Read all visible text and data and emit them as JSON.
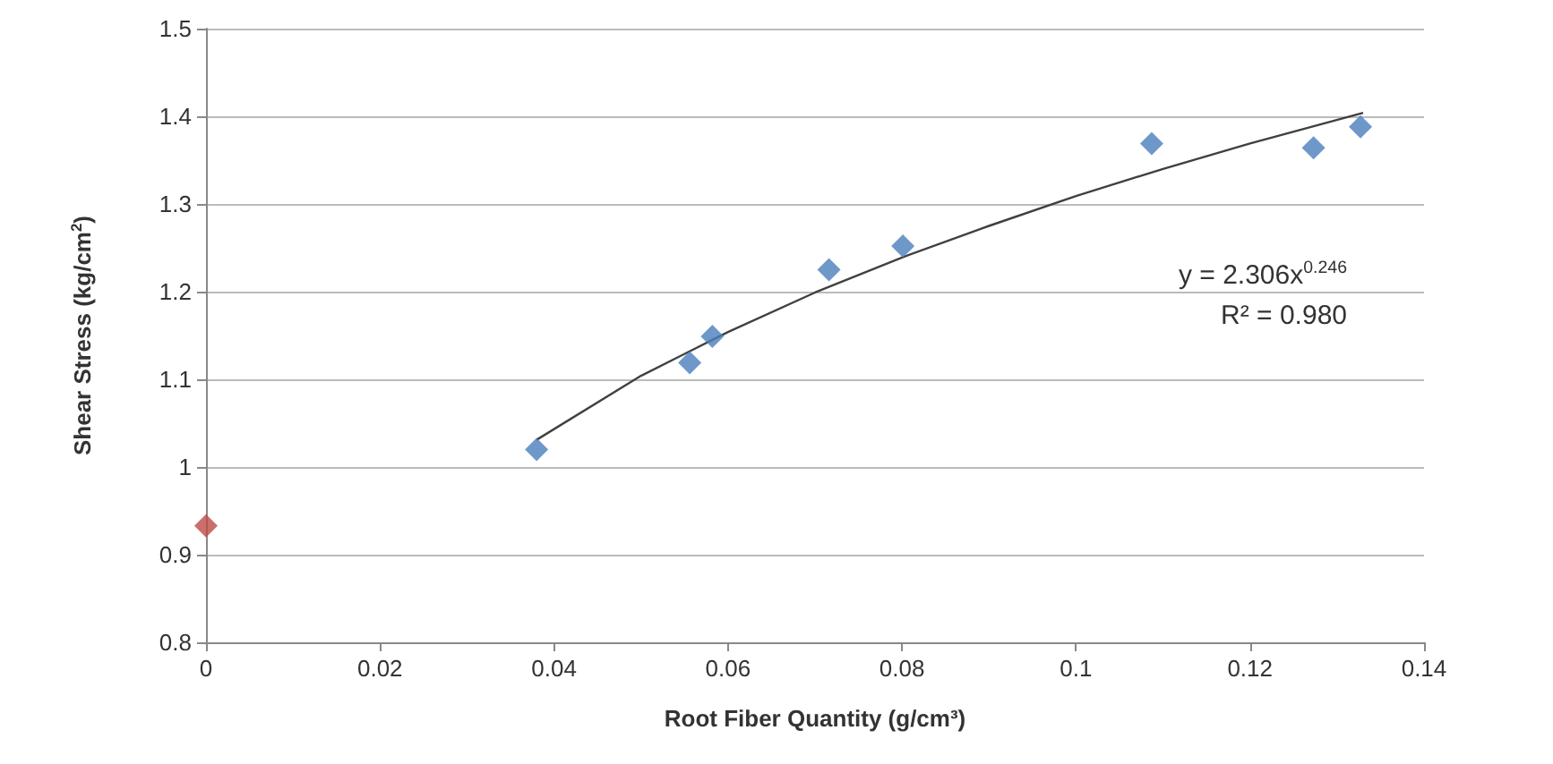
{
  "chart_data": {
    "type": "scatter",
    "xlabel": "Root Fiber Quantity (g/cm³)",
    "ylabel": "Shear Stress (kg/cm$^{2}$)",
    "xlim": [
      0,
      0.14
    ],
    "xticks": [
      0,
      0.02,
      0.04,
      0.06,
      0.08,
      0.1,
      0.12,
      0.14
    ],
    "ylim": [
      0.8,
      1.5
    ],
    "yticks": [
      0.8,
      0.9,
      1,
      1.1,
      1.2,
      1.3,
      1.4,
      1.5
    ],
    "grid": "y",
    "marker": "diamond",
    "series": [
      {
        "color": "#4a7ebb",
        "x": [
          0.038,
          0.0556,
          0.0582,
          0.0716,
          0.0801,
          0.1087,
          0.1273,
          0.1327
        ],
        "values": [
          1.02,
          1.119,
          1.149,
          1.225,
          1.252,
          1.369,
          1.364,
          1.388
        ]
      },
      {
        "color": "#be4b48",
        "x": [
          0
        ],
        "values": [
          0.933
        ]
      },
      {
        "type": "line",
        "color": "#404040",
        "marker": "none",
        "x": [
          0.038,
          0.05,
          0.06,
          0.07,
          0.08,
          0.09,
          0.1,
          0.11,
          0.12,
          0.133
        ],
        "values": [
          1.031,
          1.104,
          1.154,
          1.199,
          1.239,
          1.275,
          1.309,
          1.34,
          1.369,
          1.404
        ]
      }
    ],
    "annotations": [
      "y = 2.306x$^{0.246}$",
      "R² = 0.980"
    ]
  }
}
